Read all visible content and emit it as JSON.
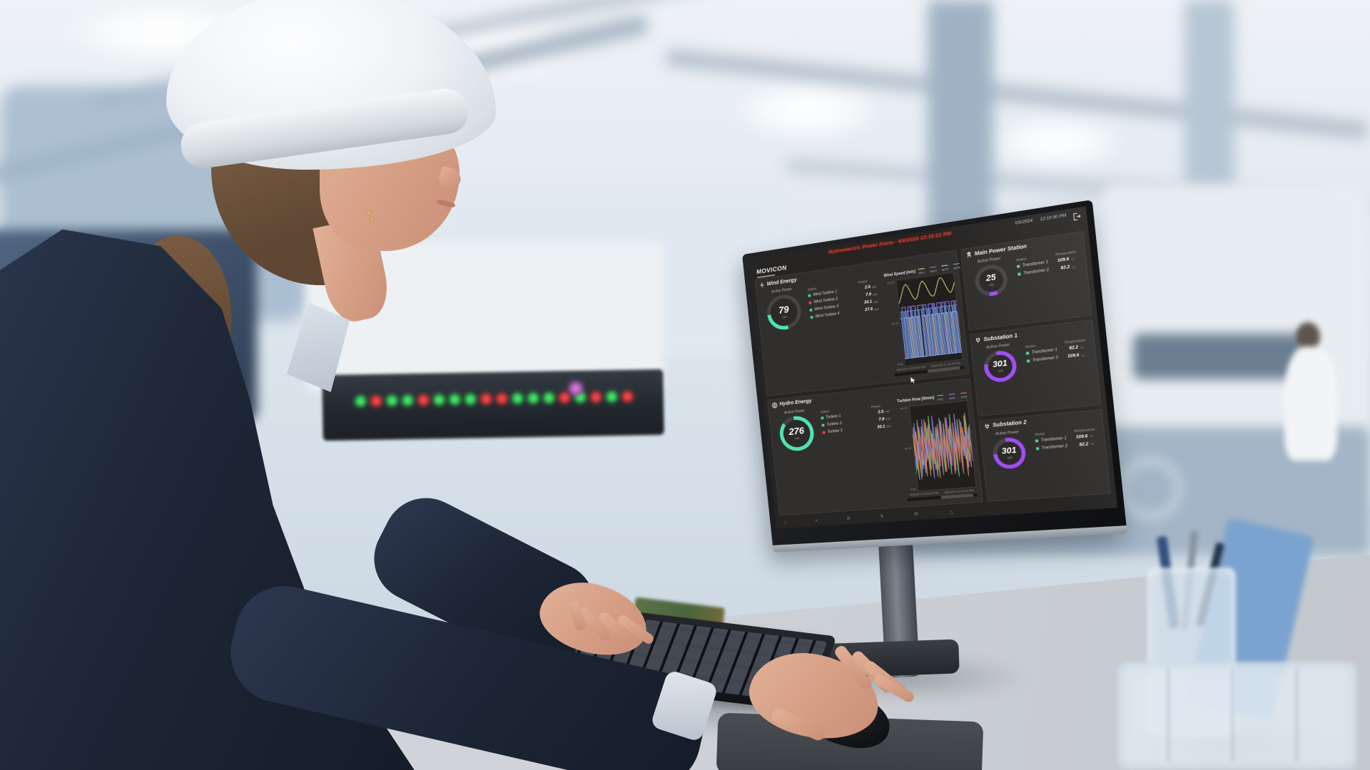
{
  "screen": {
    "brand": "MOVICON",
    "alarm_banner": "Hydroelectric Power Alarm - 6/6/2024 12:10:21 PM",
    "date": "6/6/2024",
    "time": "12:10:30 PM",
    "wind": {
      "title": "Wind Energy",
      "active_power_label": "Active Power",
      "gauge_value": "79",
      "gauge_unit": "kW",
      "col_status": "Status",
      "col_power": "Power",
      "rows": [
        {
          "name": "Wind Turbine 1",
          "value": "2.5",
          "unit": "kW",
          "status": "ok"
        },
        {
          "name": "Wind Turbine 2",
          "value": "7.9",
          "unit": "kW",
          "status": "alarm"
        },
        {
          "name": "Wind Turbine 3",
          "value": "30.1",
          "unit": "kW",
          "status": "ok"
        },
        {
          "name": "Wind Turbine 4",
          "value": "27.6",
          "unit": "kW",
          "status": "ok"
        }
      ]
    },
    "hydro": {
      "title": "Hydro Energy",
      "active_power_label": "Active Power",
      "gauge_value": "276",
      "gauge_unit": "kW",
      "col_status": "Status",
      "col_power": "Power",
      "rows": [
        {
          "name": "Turbine 1",
          "value": "2.5",
          "unit": "kW",
          "status": "ok"
        },
        {
          "name": "Turbine 2",
          "value": "7.9",
          "unit": "kW",
          "status": "ok"
        },
        {
          "name": "Turbine 3",
          "value": "30.1",
          "unit": "kW",
          "status": "alarm"
        }
      ]
    },
    "stations": [
      {
        "title": "Main Power Station",
        "active_power_label": "Active Power",
        "gauge_value": "25",
        "gauge_unit": "kW",
        "col_status": "Status",
        "col_temp": "Temperature",
        "rows": [
          {
            "name": "Transformer 1",
            "value": "109.6",
            "unit": "°C",
            "status": "ok"
          },
          {
            "name": "Transformer 2",
            "value": "82.2",
            "unit": "°C",
            "status": "ok"
          }
        ]
      },
      {
        "title": "Substation 1",
        "active_power_label": "Active Power",
        "gauge_value": "301",
        "gauge_unit": "kW",
        "col_status": "Status",
        "col_temp": "Temperature",
        "rows": [
          {
            "name": "Transformer 1",
            "value": "82.2",
            "unit": "°C",
            "status": "ok"
          },
          {
            "name": "Transformer 2",
            "value": "109.6",
            "unit": "°C",
            "status": "ok"
          }
        ]
      },
      {
        "title": "Substation 2",
        "active_power_label": "Active Power",
        "gauge_value": "301",
        "gauge_unit": "kW",
        "col_status": "Status",
        "col_temp": "Temperature",
        "rows": [
          {
            "name": "Transformer 1",
            "value": "109.6",
            "unit": "°C",
            "status": "ok"
          },
          {
            "name": "Transformer 2",
            "value": "82.2",
            "unit": "°C",
            "status": "ok"
          }
        ]
      }
    ],
    "gauges": {
      "wind": {
        "pct": 27,
        "from": 170,
        "color": "#4fe3b2"
      },
      "hydro": {
        "pct": 88,
        "from": 355,
        "color": "#4fe3b2"
      },
      "st0": {
        "pct": 9,
        "from": 160,
        "color": "#a04df5"
      },
      "st1": {
        "pct": 82,
        "from": 350,
        "color": "#a04df5"
      },
      "st2": {
        "pct": 78,
        "from": 350,
        "color": "#a04df5"
      }
    },
    "toolbar": [
      {
        "name": "home",
        "glyph": "⌂"
      },
      {
        "name": "location",
        "glyph": "⌖"
      },
      {
        "name": "wind-turbine",
        "glyph": "⋔"
      },
      {
        "name": "energy",
        "glyph": "↯"
      },
      {
        "name": "settings",
        "glyph": "⚙"
      },
      {
        "name": "alarms",
        "glyph": "△"
      }
    ]
  },
  "chart_data": [
    {
      "type": "line",
      "title": "Wind Speed [m/s]",
      "ylim": [
        0,
        40
      ],
      "yticks": [
        "40.00",
        "20.00",
        "0.00"
      ],
      "x_labels": [
        "6/6/2024 12:09:00 PM",
        "6/6/2024 12:10:00 PM"
      ],
      "grid": true,
      "legend_position": "top",
      "series": [
        {
          "name": "WT1",
          "color": "#d9e07c",
          "step": false,
          "values": [
            29,
            30,
            31.5,
            33,
            34.5,
            36,
            37,
            37.5,
            37,
            36,
            34.5,
            33,
            31.5,
            30.5,
            30,
            30.5,
            31.5,
            33,
            35,
            36.5,
            37.5,
            38,
            37.5,
            36.5,
            35,
            33.5,
            32,
            31,
            30.5,
            30.5,
            31,
            32.5,
            34,
            35.5,
            37,
            38,
            38.5,
            38,
            37,
            35.5,
            34,
            32.5,
            31.5,
            31,
            31.5,
            32.5,
            34,
            35.5
          ]
        },
        {
          "name": "WT2",
          "color": "#8d7cf5",
          "step": true,
          "values": [
            3,
            3,
            27,
            27,
            27,
            3,
            3,
            27,
            27,
            3,
            27,
            27,
            27,
            3,
            3,
            27,
            27,
            27,
            27,
            3,
            27,
            27,
            3,
            3,
            27,
            27,
            27,
            3,
            27,
            3,
            3,
            27,
            27,
            27,
            3,
            27,
            27,
            3,
            27,
            27,
            27,
            3,
            3,
            27,
            27,
            3,
            27,
            27
          ]
        },
        {
          "name": "WT3",
          "color": "#cfcfcf",
          "step": true,
          "values": [
            22,
            3,
            3,
            22,
            22,
            22,
            3,
            22,
            3,
            22,
            22,
            3,
            22,
            22,
            3,
            22,
            3,
            3,
            22,
            22,
            22,
            3,
            22,
            22,
            3,
            3,
            22,
            3,
            22,
            22,
            22,
            3,
            22,
            3,
            22,
            22,
            3,
            22,
            22,
            3,
            3,
            22,
            3,
            22,
            22,
            22,
            3,
            22
          ]
        },
        {
          "name": "WT4",
          "color": "#6e9ff0",
          "step": true,
          "values": [
            3,
            25,
            25,
            3,
            25,
            3,
            25,
            25,
            25,
            3,
            25,
            25,
            3,
            25,
            25,
            3,
            25,
            25,
            3,
            25,
            25,
            25,
            3,
            25,
            3,
            25,
            25,
            25,
            3,
            25,
            3,
            25,
            25,
            3,
            25,
            25,
            25,
            3,
            25,
            25,
            3,
            25,
            25,
            3,
            25,
            3,
            25,
            25
          ]
        }
      ]
    },
    {
      "type": "line",
      "title": "Turbine Flow [lt/min]",
      "ylim": [
        0,
        60
      ],
      "yticks": [
        "60.00",
        "30.00",
        "0.00"
      ],
      "x_labels": [
        "6/6/2024 12:09:00 PM",
        "6/6/2024 12:10:00 PM"
      ],
      "grid": true,
      "legend_position": "top",
      "series": [
        {
          "name": "HT1",
          "color": "#69c76a",
          "step": false,
          "values": [
            12,
            35,
            8,
            42,
            20,
            50,
            15,
            30,
            45,
            10,
            38,
            22,
            48,
            14,
            33,
            52,
            18,
            40,
            9,
            28,
            44,
            16,
            36,
            24,
            50,
            12,
            30,
            46,
            20,
            38,
            10,
            42,
            26,
            52,
            16,
            34,
            8,
            44,
            28,
            48,
            14,
            36,
            22,
            40,
            12,
            50,
            18,
            32,
            42,
            24
          ]
        },
        {
          "name": "HT2",
          "color": "#8d7cf5",
          "step": false,
          "values": [
            40,
            15,
            48,
            22,
            35,
            10,
            45,
            28,
            12,
            50,
            20,
            38,
            16,
            44,
            30,
            8,
            42,
            24,
            52,
            14,
            36,
            18,
            46,
            10,
            32,
            48,
            22,
            40,
            14,
            34,
            50,
            16,
            28,
            44,
            12,
            38,
            24,
            52,
            18,
            42,
            10,
            30,
            46,
            20,
            36,
            14,
            48,
            26,
            40,
            18
          ]
        },
        {
          "name": "HT3",
          "color": "#e07b4a",
          "step": false,
          "values": [
            25,
            45,
            15,
            38,
            8,
            48,
            28,
            18,
            42,
            12,
            35,
            50,
            10,
            30,
            46,
            20,
            40,
            14,
            36,
            24,
            8,
            44,
            32,
            16,
            48,
            26,
            12,
            38,
            22,
            50,
            18,
            34,
            44,
            10,
            28,
            46,
            16,
            40,
            20,
            36,
            12,
            48,
            24,
            42,
            8,
            32,
            52,
            14,
            30,
            44
          ]
        }
      ]
    }
  ],
  "leds": {
    "pattern": [
      "g",
      "r",
      "g",
      "g",
      "r",
      "g",
      "g",
      "g",
      "r",
      "r",
      "g",
      "g",
      "g",
      "r",
      "g",
      "r",
      "g",
      "r"
    ]
  },
  "colors": {
    "accent_teal": "#4fe3b2",
    "accent_purple": "#a04df5",
    "status_ok": "#3fd68f",
    "status_alarm": "#ef4040",
    "alarm_text": "#f23a2c",
    "gauge_track": "#474443",
    "led_green": "#35d65a",
    "led_red": "#ef3b40"
  }
}
